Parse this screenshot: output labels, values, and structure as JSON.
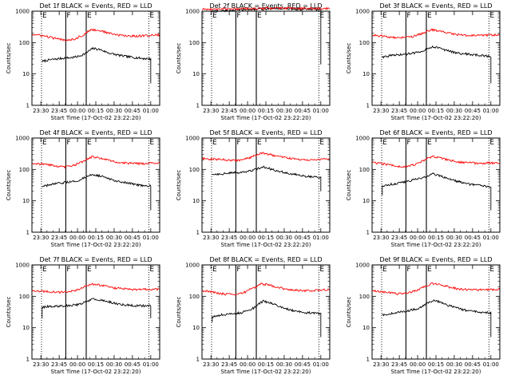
{
  "figure": {
    "background": "#ffffff",
    "series_colors": {
      "events": "#000000",
      "lld": "#ff0000"
    }
  },
  "chart_data": [
    {
      "type": "line",
      "title": "Det 1f BLACK = Events, RED = LLD",
      "xlabel": "Start Time (17-Oct-02 23:22:20)",
      "ylabel": "Counts/sec",
      "yscale": "log",
      "ylim": [
        1,
        1000
      ],
      "y_ticks": [
        "1",
        "10",
        "100",
        "1000"
      ],
      "xlim": [
        0,
        100
      ],
      "x_ticks": [
        "23:30",
        "23:45",
        "00:00",
        "00:15",
        "00:30",
        "00:45",
        "01:00"
      ],
      "series": [
        {
          "key": "events",
          "data_start": 8,
          "data_end": 93,
          "dropout": [
            null,
            5
          ],
          "values": [
            25,
            28,
            30,
            32,
            33,
            36,
            45,
            65,
            60,
            48,
            42,
            38,
            35,
            33,
            31,
            30
          ]
        },
        {
          "key": "lld",
          "data_start": 0,
          "data_end": 100,
          "values": [
            180,
            170,
            150,
            130,
            120,
            130,
            170,
            260,
            240,
            200,
            175,
            165,
            160,
            165,
            170,
            175
          ]
        }
      ],
      "markers": [
        {
          "label": "F",
          "x": 26.5,
          "style": "solid"
        },
        {
          "label": "E",
          "x": 42.5,
          "style": "solid"
        },
        {
          "label": "E",
          "x": 7.5,
          "style": "dotted"
        },
        {
          "label": "E",
          "x": 91.5,
          "style": "dotted"
        }
      ]
    },
    {
      "type": "line",
      "title": "Det 2f BLACK = Events, RED = LLD",
      "xlabel": "Start Time (17-Oct-02 23:22:20)",
      "ylabel": "Counts/sec",
      "yscale": "log",
      "ylim": [
        1,
        1000
      ],
      "y_ticks": [
        "1",
        "10",
        "100",
        "1000"
      ],
      "xlim": [
        0,
        100
      ],
      "x_ticks": [
        "23:30",
        "23:45",
        "00:00",
        "00:15",
        "00:30",
        "00:45",
        "01:00"
      ],
      "series": [
        {
          "key": "events",
          "data_start": 8,
          "data_end": 93,
          "dropout": [
            1000,
            20
          ],
          "values": [
            1000,
            1020,
            1050,
            1080,
            1100,
            1120,
            1150,
            1180,
            1200,
            1220,
            1200,
            1180,
            1160,
            1150,
            1140,
            1130
          ]
        },
        {
          "key": "lld",
          "data_start": 0,
          "data_end": 100,
          "values": [
            1150,
            1160,
            1170,
            1180,
            1190,
            1200,
            1210,
            1220,
            1230,
            1240,
            1240,
            1230,
            1220,
            1220,
            1220,
            1220
          ]
        }
      ],
      "markers": [
        {
          "label": "F",
          "x": 26.5,
          "style": "solid"
        },
        {
          "label": "E",
          "x": 42.5,
          "style": "solid"
        },
        {
          "label": "E",
          "x": 7.5,
          "style": "dotted"
        },
        {
          "label": "E",
          "x": 91.5,
          "style": "dotted"
        }
      ]
    },
    {
      "type": "line",
      "title": "Det 3f BLACK = Events, RED = LLD",
      "xlabel": "Start Time (17-Oct-02 23:22:20)",
      "ylabel": "Counts/sec",
      "yscale": "log",
      "ylim": [
        1,
        1000
      ],
      "y_ticks": [
        "1",
        "10",
        "100",
        "1000"
      ],
      "xlim": [
        0,
        100
      ],
      "x_ticks": [
        "23:30",
        "23:45",
        "00:00",
        "00:15",
        "00:30",
        "00:45",
        "01:00"
      ],
      "series": [
        {
          "key": "events",
          "data_start": 8,
          "data_end": 93,
          "dropout": [
            null,
            5
          ],
          "values": [
            35,
            38,
            40,
            42,
            45,
            50,
            60,
            75,
            65,
            55,
            48,
            45,
            42,
            40,
            38,
            36
          ]
        },
        {
          "key": "lld",
          "data_start": 0,
          "data_end": 100,
          "values": [
            170,
            165,
            150,
            140,
            145,
            160,
            200,
            260,
            230,
            200,
            180,
            170,
            165,
            170,
            175,
            180
          ]
        }
      ],
      "markers": [
        {
          "label": "F",
          "x": 26.5,
          "style": "solid"
        },
        {
          "label": "E",
          "x": 42.5,
          "style": "solid"
        },
        {
          "label": "E",
          "x": 7.5,
          "style": "dotted"
        },
        {
          "label": "E",
          "x": 91.5,
          "style": "dotted"
        }
      ]
    },
    {
      "type": "line",
      "title": "Det 4f BLACK = Events, RED = LLD",
      "xlabel": "Start Time (17-Oct-02 23:22:20)",
      "ylabel": "Counts/sec",
      "yscale": "log",
      "ylim": [
        1,
        1000
      ],
      "y_ticks": [
        "1",
        "10",
        "100",
        "1000"
      ],
      "xlim": [
        0,
        100
      ],
      "x_ticks": [
        "23:30",
        "23:45",
        "00:00",
        "00:15",
        "00:30",
        "00:45",
        "01:00"
      ],
      "series": [
        {
          "key": "events",
          "data_start": 8,
          "data_end": 93,
          "dropout": [
            null,
            5
          ],
          "values": [
            28,
            32,
            35,
            38,
            40,
            45,
            55,
            70,
            62,
            52,
            45,
            40,
            36,
            33,
            31,
            30
          ]
        },
        {
          "key": "lld",
          "data_start": 0,
          "data_end": 100,
          "values": [
            160,
            150,
            140,
            125,
            120,
            135,
            175,
            250,
            230,
            195,
            170,
            160,
            155,
            155,
            160,
            160
          ]
        }
      ],
      "markers": [
        {
          "label": "F",
          "x": 26.5,
          "style": "solid"
        },
        {
          "label": "E",
          "x": 42.5,
          "style": "solid"
        },
        {
          "label": "E",
          "x": 7.5,
          "style": "dotted"
        },
        {
          "label": "E",
          "x": 91.5,
          "style": "dotted"
        }
      ]
    },
    {
      "type": "line",
      "title": "Det 5f BLACK = Events, RED = LLD",
      "xlabel": "Start Time (17-Oct-02 23:22:20)",
      "ylabel": "Counts/sec",
      "yscale": "log",
      "ylim": [
        1,
        1000
      ],
      "y_ticks": [
        "1",
        "10",
        "100",
        "1000"
      ],
      "xlim": [
        0,
        100
      ],
      "x_ticks": [
        "23:30",
        "23:45",
        "00:00",
        "00:15",
        "00:30",
        "00:45",
        "01:00"
      ],
      "series": [
        {
          "key": "events",
          "data_start": 8,
          "data_end": 93,
          "dropout": [
            null,
            20
          ],
          "values": [
            70,
            72,
            75,
            78,
            80,
            85,
            100,
            120,
            105,
            90,
            80,
            72,
            65,
            60,
            58,
            55
          ]
        },
        {
          "key": "lld",
          "data_start": 0,
          "data_end": 100,
          "values": [
            220,
            215,
            210,
            200,
            195,
            210,
            260,
            330,
            300,
            260,
            230,
            210,
            200,
            205,
            215,
            220
          ]
        }
      ],
      "markers": [
        {
          "label": "F",
          "x": 26.5,
          "style": "solid"
        },
        {
          "label": "E",
          "x": 42.5,
          "style": "solid"
        },
        {
          "label": "E",
          "x": 7.5,
          "style": "dotted"
        },
        {
          "label": "E",
          "x": 91.5,
          "style": "dotted"
        }
      ]
    },
    {
      "type": "line",
      "title": "Det 6f BLACK = Events, RED = LLD",
      "xlabel": "Start Time (17-Oct-02 23:22:20)",
      "ylabel": "Counts/sec",
      "yscale": "log",
      "ylim": [
        1,
        1000
      ],
      "y_ticks": [
        "1",
        "10",
        "100",
        "1000"
      ],
      "xlim": [
        0,
        100
      ],
      "x_ticks": [
        "23:30",
        "23:45",
        "00:00",
        "00:15",
        "00:30",
        "00:45",
        "01:00"
      ],
      "series": [
        {
          "key": "events",
          "data_start": 8,
          "data_end": 93,
          "dropout": [
            15,
            5
          ],
          "values": [
            30,
            33,
            36,
            40,
            45,
            50,
            58,
            72,
            63,
            52,
            44,
            38,
            34,
            32,
            30,
            29
          ]
        },
        {
          "key": "lld",
          "data_start": 0,
          "data_end": 100,
          "values": [
            165,
            155,
            140,
            125,
            125,
            140,
            185,
            260,
            235,
            200,
            175,
            165,
            160,
            160,
            160,
            165
          ]
        }
      ],
      "markers": [
        {
          "label": "F",
          "x": 26.5,
          "style": "solid"
        },
        {
          "label": "E",
          "x": 42.5,
          "style": "solid"
        },
        {
          "label": "E",
          "x": 7.5,
          "style": "dotted"
        },
        {
          "label": "E",
          "x": 91.5,
          "style": "dotted"
        }
      ]
    },
    {
      "type": "line",
      "title": "Det 7f BLACK = Events, RED = LLD",
      "xlabel": "Start Time (17-Oct-02 23:22:20)",
      "ylabel": "Counts/sec",
      "yscale": "log",
      "ylim": [
        1,
        1000
      ],
      "y_ticks": [
        "1",
        "10",
        "100",
        "1000"
      ],
      "xlim": [
        0,
        100
      ],
      "x_ticks": [
        "23:30",
        "23:45",
        "00:00",
        "00:15",
        "00:30",
        "00:45",
        "01:00"
      ],
      "series": [
        {
          "key": "events",
          "data_start": 8,
          "data_end": 93,
          "dropout": [
            20,
            20
          ],
          "values": [
            45,
            48,
            48,
            50,
            52,
            55,
            65,
            82,
            78,
            68,
            60,
            55,
            52,
            50,
            50,
            50
          ]
        },
        {
          "key": "lld",
          "data_start": 0,
          "data_end": 100,
          "values": [
            150,
            145,
            140,
            135,
            135,
            150,
            190,
            250,
            230,
            200,
            180,
            170,
            165,
            165,
            165,
            165
          ]
        }
      ],
      "markers": [
        {
          "label": "F",
          "x": 26.5,
          "style": "solid"
        },
        {
          "label": "E",
          "x": 42.5,
          "style": "solid"
        },
        {
          "label": "E",
          "x": 7.5,
          "style": "dotted"
        },
        {
          "label": "E",
          "x": 91.5,
          "style": "dotted"
        }
      ]
    },
    {
      "type": "line",
      "title": "Det 8f BLACK = Events, RED = LLD",
      "xlabel": "Start Time (17-Oct-02 23:22:20)",
      "ylabel": "Counts/sec",
      "yscale": "log",
      "ylim": [
        1,
        1000
      ],
      "y_ticks": [
        "1",
        "10",
        "100",
        "1000"
      ],
      "xlim": [
        0,
        100
      ],
      "x_ticks": [
        "23:30",
        "23:45",
        "00:00",
        "00:15",
        "00:30",
        "00:45",
        "01:00"
      ],
      "series": [
        {
          "key": "events",
          "data_start": 8,
          "data_end": 93,
          "dropout": [
            15,
            5
          ],
          "values": [
            22,
            25,
            27,
            28,
            30,
            35,
            45,
            70,
            62,
            50,
            42,
            36,
            33,
            30,
            29,
            28
          ]
        },
        {
          "key": "lld",
          "data_start": 0,
          "data_end": 100,
          "values": [
            150,
            140,
            125,
            115,
            115,
            135,
            180,
            250,
            225,
            190,
            165,
            155,
            150,
            155,
            160,
            165
          ]
        }
      ],
      "markers": [
        {
          "label": "F",
          "x": 26.5,
          "style": "solid"
        },
        {
          "label": "E",
          "x": 42.5,
          "style": "solid"
        },
        {
          "label": "E",
          "x": 7.5,
          "style": "dotted"
        },
        {
          "label": "E",
          "x": 91.5,
          "style": "dotted"
        }
      ]
    },
    {
      "type": "line",
      "title": "Det 9f BLACK = Events, RED = LLD",
      "xlabel": "Start Time (17-Oct-02 23:22:20)",
      "ylabel": "Counts/sec",
      "yscale": "log",
      "ylim": [
        1,
        1000
      ],
      "y_ticks": [
        "1",
        "10",
        "100",
        "1000"
      ],
      "xlim": [
        0,
        100
      ],
      "x_ticks": [
        "23:30",
        "23:45",
        "00:00",
        "00:15",
        "00:30",
        "00:45",
        "01:00"
      ],
      "series": [
        {
          "key": "events",
          "data_start": 8,
          "data_end": 93,
          "dropout": [
            null,
            5
          ],
          "values": [
            25,
            28,
            30,
            33,
            36,
            42,
            55,
            75,
            65,
            52,
            45,
            38,
            34,
            32,
            30,
            30
          ]
        },
        {
          "key": "lld",
          "data_start": 0,
          "data_end": 100,
          "values": [
            150,
            140,
            130,
            120,
            125,
            145,
            190,
            260,
            235,
            200,
            175,
            165,
            160,
            160,
            165,
            165
          ]
        }
      ],
      "markers": [
        {
          "label": "F",
          "x": 26.5,
          "style": "solid"
        },
        {
          "label": "E",
          "x": 42.5,
          "style": "solid"
        },
        {
          "label": "E",
          "x": 7.5,
          "style": "dotted"
        },
        {
          "label": "E",
          "x": 91.5,
          "style": "dotted"
        }
      ]
    }
  ]
}
